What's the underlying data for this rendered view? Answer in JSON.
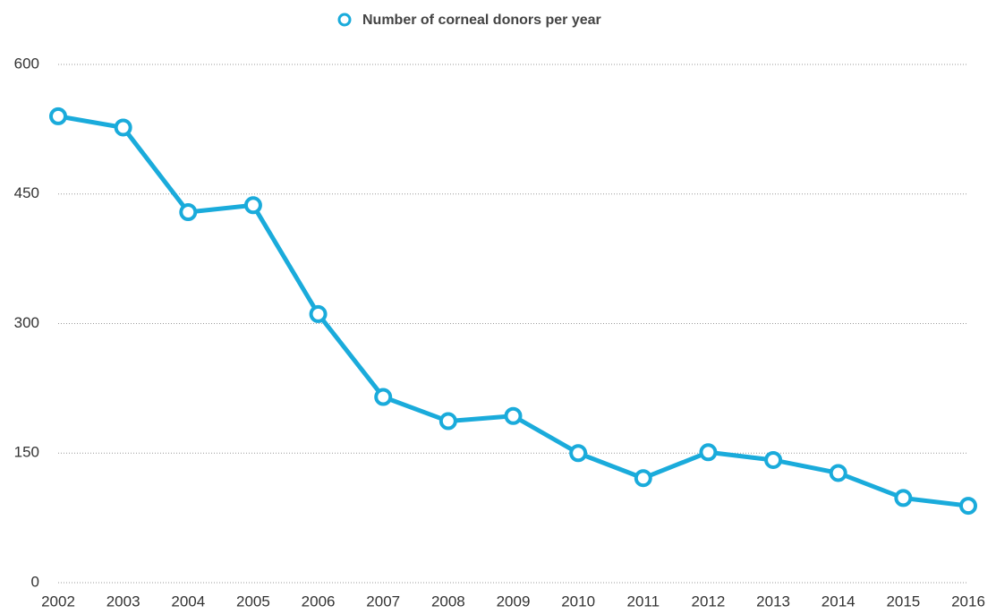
{
  "chart_data": {
    "type": "line",
    "categories": [
      "2002",
      "2003",
      "2004",
      "2005",
      "2006",
      "2007",
      "2008",
      "2009",
      "2010",
      "2011",
      "2012",
      "2013",
      "2014",
      "2015",
      "2016"
    ],
    "series": [
      {
        "name": "Number of corneal donors per year",
        "color": "#1aabdb",
        "values": [
          540,
          527,
          429,
          437,
          311,
          215,
          187,
          193,
          150,
          121,
          151,
          142,
          127,
          98,
          89
        ]
      }
    ],
    "ylim": [
      0,
      600
    ],
    "yticks": [
      0,
      150,
      300,
      450,
      600
    ],
    "grid": true,
    "legend": "top"
  }
}
